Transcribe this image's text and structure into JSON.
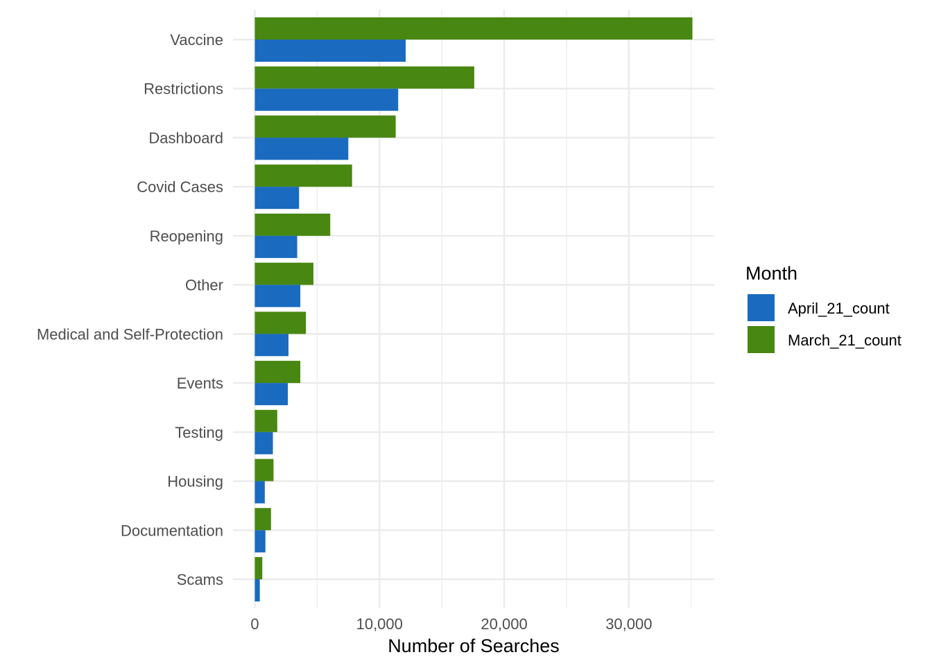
{
  "chart_data": {
    "type": "bar",
    "orientation": "horizontal",
    "grouped": true,
    "categories": [
      "Vaccine",
      "Restrictions",
      "Dashboard",
      "Covid Cases",
      "Reopening",
      "Other",
      "Medical and Self-Protection",
      "Events",
      "Testing",
      "Housing",
      "Documentation",
      "Scams"
    ],
    "series": [
      {
        "name": "April_21_count",
        "color": "#1a6bbf",
        "values": [
          12100,
          11500,
          7500,
          3550,
          3400,
          3650,
          2700,
          2650,
          1450,
          800,
          850,
          400
        ]
      },
      {
        "name": "March_21_count",
        "color": "#488711",
        "values": [
          35100,
          17600,
          11300,
          7800,
          6050,
          4700,
          4100,
          3650,
          1800,
          1500,
          1300,
          600
        ]
      }
    ],
    "x_ticks": [
      0,
      10000,
      20000,
      30000
    ],
    "x_tick_labels": [
      "0",
      "10,000",
      "20,000",
      "30,000"
    ],
    "xlim": [
      -1750,
      36850
    ],
    "xlabel": "Number of Searches",
    "ylabel": "",
    "legend": {
      "title": "Month",
      "position": "right"
    },
    "grid": true
  }
}
